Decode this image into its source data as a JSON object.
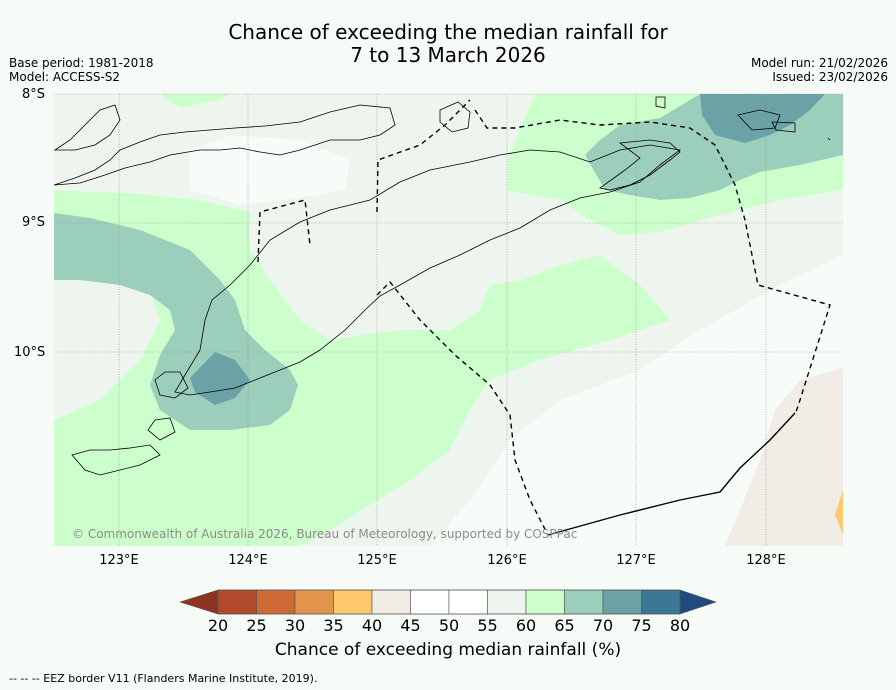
{
  "title": {
    "line1": "Chance of exceeding the median rainfall for",
    "line2": "7 to 13 March 2026"
  },
  "meta_left": {
    "base_period": "Base period: 1981-2018",
    "model": "Model: ACCESS-S2"
  },
  "meta_right": {
    "model_run": "Model run: 21/02/2026",
    "issued": "Issued: 23/02/2026"
  },
  "axes": {
    "lat_labels": [
      "8°S",
      "9°S",
      "10°S"
    ],
    "lon_labels": [
      "123°E",
      "124°E",
      "125°E",
      "126°E",
      "127°E",
      "128°E"
    ]
  },
  "copyright": "© Commonwealth of Australia 2026, Bureau of Meteorology, supported by COSPPac",
  "colorbar": {
    "ticks": [
      "20",
      "25",
      "30",
      "35",
      "40",
      "45",
      "50",
      "55",
      "60",
      "65",
      "70",
      "75",
      "80"
    ],
    "colors": [
      "#b04a2a",
      "#cd6a35",
      "#e0954a",
      "#fdc96a",
      "#f1ece6",
      "#ffffff",
      "#ffffff",
      "#eef5ee",
      "#ccffcc",
      "#9ccfbb",
      "#6aa2a5",
      "#3c7795"
    ],
    "under_color": "#8c3322",
    "over_color": "#1f4b7d",
    "title": "Chance of exceeding median rainfall (%)"
  },
  "footer": "--  --  -- EEZ border V11 (Flanders Marine Institute, 2019)."
}
